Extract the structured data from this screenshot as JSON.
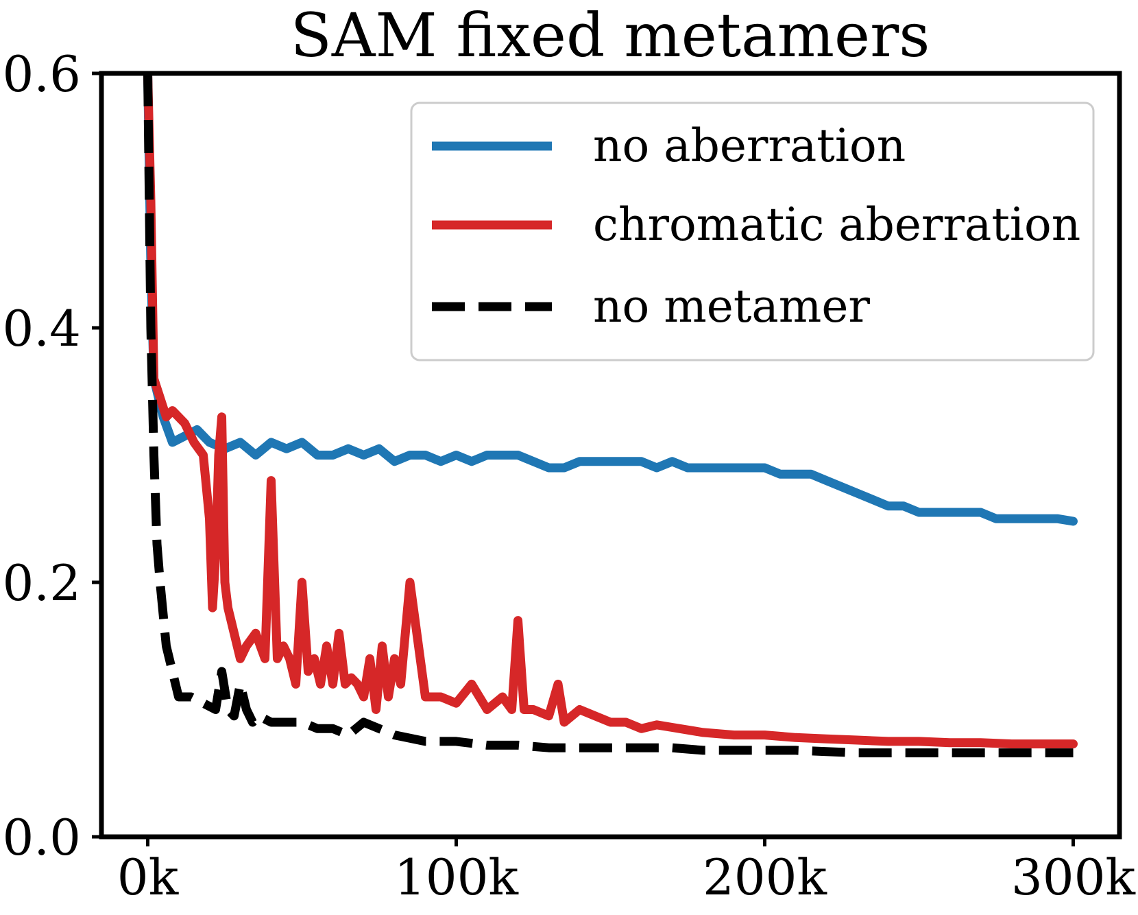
{
  "chart_data": {
    "type": "line",
    "title": "SAM fixed metamers",
    "xlabel": "",
    "ylabel": "",
    "xlim": [
      -15000,
      315000
    ],
    "ylim": [
      0,
      0.6
    ],
    "xticks": [
      0,
      100000,
      200000,
      300000
    ],
    "xtick_labels": [
      "0k",
      "100k",
      "200k",
      "300k"
    ],
    "yticks": [
      0.0,
      0.2,
      0.4,
      0.6
    ],
    "ytick_labels": [
      "0.0",
      "0.2",
      "0.4",
      "0.6"
    ],
    "grid": false,
    "legend_position": "top-right",
    "series": [
      {
        "name": "no aberration",
        "color": "#1f77b4",
        "dash": "solid",
        "x": [
          0,
          1000,
          2000,
          5000,
          8000,
          12000,
          16000,
          20000,
          25000,
          30000,
          35000,
          40000,
          45000,
          50000,
          55000,
          60000,
          65000,
          70000,
          75000,
          80000,
          85000,
          90000,
          95000,
          100000,
          105000,
          110000,
          115000,
          120000,
          125000,
          130000,
          135000,
          140000,
          145000,
          150000,
          155000,
          160000,
          165000,
          170000,
          175000,
          180000,
          185000,
          190000,
          195000,
          200000,
          205000,
          210000,
          215000,
          220000,
          225000,
          230000,
          235000,
          240000,
          245000,
          250000,
          255000,
          260000,
          265000,
          270000,
          275000,
          280000,
          285000,
          290000,
          295000,
          300000
        ],
        "y": [
          0.6,
          0.45,
          0.36,
          0.33,
          0.31,
          0.315,
          0.32,
          0.31,
          0.305,
          0.31,
          0.3,
          0.31,
          0.305,
          0.31,
          0.3,
          0.3,
          0.305,
          0.3,
          0.305,
          0.295,
          0.3,
          0.3,
          0.295,
          0.3,
          0.295,
          0.3,
          0.3,
          0.3,
          0.295,
          0.29,
          0.29,
          0.295,
          0.295,
          0.295,
          0.295,
          0.295,
          0.29,
          0.295,
          0.29,
          0.29,
          0.29,
          0.29,
          0.29,
          0.29,
          0.285,
          0.285,
          0.285,
          0.28,
          0.275,
          0.27,
          0.265,
          0.26,
          0.26,
          0.255,
          0.255,
          0.255,
          0.255,
          0.255,
          0.25,
          0.25,
          0.25,
          0.25,
          0.25,
          0.248
        ]
      },
      {
        "name": "chromatic aberration",
        "color": "#d62728",
        "dash": "solid",
        "x": [
          0,
          1000,
          2000,
          4000,
          6000,
          8000,
          10000,
          12000,
          15000,
          18000,
          20000,
          21000,
          22000,
          23000,
          24000,
          25000,
          26000,
          28000,
          30000,
          32000,
          35000,
          38000,
          40000,
          42000,
          44000,
          46000,
          48000,
          50000,
          52000,
          54000,
          56000,
          58000,
          60000,
          62000,
          64000,
          66000,
          68000,
          70000,
          72000,
          74000,
          76000,
          78000,
          80000,
          82000,
          85000,
          90000,
          95000,
          100000,
          105000,
          110000,
          115000,
          118000,
          120000,
          122000,
          125000,
          130000,
          133000,
          135000,
          140000,
          145000,
          150000,
          155000,
          160000,
          165000,
          170000,
          180000,
          190000,
          200000,
          210000,
          220000,
          230000,
          240000,
          250000,
          260000,
          270000,
          280000,
          290000,
          300000
        ],
        "y": [
          0.6,
          0.5,
          0.36,
          0.345,
          0.33,
          0.335,
          0.33,
          0.325,
          0.31,
          0.3,
          0.25,
          0.18,
          0.22,
          0.3,
          0.33,
          0.2,
          0.18,
          0.16,
          0.14,
          0.15,
          0.16,
          0.14,
          0.28,
          0.14,
          0.15,
          0.14,
          0.12,
          0.2,
          0.13,
          0.14,
          0.12,
          0.15,
          0.12,
          0.16,
          0.12,
          0.125,
          0.12,
          0.11,
          0.14,
          0.1,
          0.15,
          0.11,
          0.14,
          0.12,
          0.2,
          0.11,
          0.11,
          0.105,
          0.12,
          0.1,
          0.11,
          0.1,
          0.17,
          0.1,
          0.1,
          0.095,
          0.12,
          0.09,
          0.1,
          0.095,
          0.09,
          0.09,
          0.085,
          0.088,
          0.086,
          0.082,
          0.08,
          0.08,
          0.078,
          0.077,
          0.076,
          0.075,
          0.075,
          0.074,
          0.074,
          0.073,
          0.073,
          0.073
        ]
      },
      {
        "name": "no metamer",
        "color": "#000000",
        "dash": "dashed",
        "x": [
          0,
          1000,
          2000,
          3000,
          4000,
          6000,
          8000,
          10000,
          14000,
          18000,
          22000,
          24000,
          26000,
          28000,
          30000,
          32000,
          34000,
          36000,
          40000,
          45000,
          50000,
          55000,
          60000,
          65000,
          70000,
          75000,
          80000,
          90000,
          100000,
          110000,
          120000,
          130000,
          140000,
          150000,
          160000,
          170000,
          180000,
          190000,
          200000,
          210000,
          220000,
          230000,
          240000,
          250000,
          260000,
          270000,
          280000,
          290000,
          300000
        ],
        "y": [
          0.6,
          0.4,
          0.3,
          0.23,
          0.2,
          0.15,
          0.13,
          0.11,
          0.11,
          0.105,
          0.1,
          0.13,
          0.1,
          0.095,
          0.12,
          0.1,
          0.09,
          0.095,
          0.09,
          0.09,
          0.09,
          0.085,
          0.085,
          0.08,
          0.09,
          0.085,
          0.08,
          0.075,
          0.075,
          0.072,
          0.072,
          0.07,
          0.07,
          0.07,
          0.07,
          0.07,
          0.068,
          0.068,
          0.068,
          0.068,
          0.067,
          0.066,
          0.066,
          0.066,
          0.066,
          0.066,
          0.066,
          0.066,
          0.066
        ]
      }
    ]
  }
}
